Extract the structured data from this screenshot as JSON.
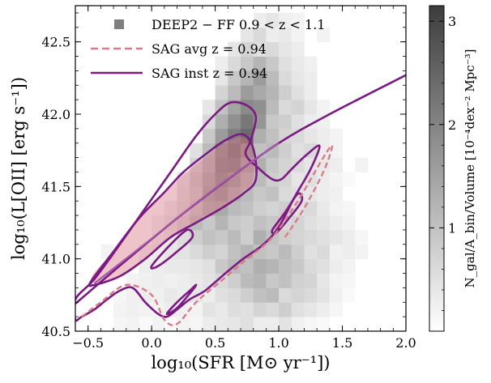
{
  "chart_data": {
    "type": "heatmap",
    "xlabel": "log₁₀(SFR [M⊙ yr⁻¹])",
    "ylabel": "log₁₀(L[OII] [erg s⁻¹])",
    "xlim": [
      -0.6,
      2.0
    ],
    "ylim": [
      40.5,
      42.75
    ],
    "xticks": [
      "−0.5",
      "0.0",
      "0.5",
      "1.0",
      "1.5",
      "2.0"
    ],
    "yticks": [
      "40.5",
      "41.0",
      "41.5",
      "42.0",
      "42.5"
    ],
    "grid": false,
    "legend_position": "top-left",
    "legend": [
      {
        "label": "DEEP2 − FF  0.9 < z < 1.1",
        "marker": "square",
        "color": "#7f7f7f"
      },
      {
        "label": "SAG avg z = 0.94",
        "marker": "dashed-line",
        "color": "#d97b88"
      },
      {
        "label": "SAG inst z = 0.94",
        "marker": "solid-line",
        "color": "#7b1a82"
      }
    ],
    "colorbar": {
      "label": "N_gal/A_bin/Volume [10⁻⁴dex⁻² Mpc⁻³]",
      "ticks": [
        "1",
        "2",
        "3"
      ],
      "range": [
        0,
        3.15
      ],
      "colormap": "Greys"
    },
    "heatmap_grid": {
      "x_start": -0.6,
      "x_step": 0.1,
      "y_start": 40.5,
      "y_step": 0.1,
      "values": [
        [
          0,
          0,
          0,
          0.15,
          0.2,
          0.1,
          0.2,
          0.1,
          0.2,
          0.15,
          0.3,
          0.35,
          0.4,
          0.5,
          0.3,
          0.3,
          0.45,
          0.25,
          0.15,
          0.1,
          0,
          0,
          0,
          0,
          0,
          0
        ],
        [
          0,
          0,
          0,
          0.2,
          0.25,
          0.2,
          0.2,
          0.3,
          0.25,
          0.2,
          0.45,
          0.35,
          0.55,
          0.5,
          0.7,
          0.6,
          0.8,
          0.5,
          0.4,
          0.3,
          0.15,
          0,
          0,
          0,
          0,
          0
        ],
        [
          0,
          0,
          0,
          0.15,
          0.25,
          0.3,
          0.25,
          0.35,
          0.3,
          0.4,
          0.3,
          0.5,
          0.6,
          0.8,
          1.0,
          1.1,
          0.6,
          0.7,
          0.6,
          0.45,
          0.25,
          0.1,
          0,
          0,
          0,
          0
        ],
        [
          0,
          0,
          0,
          0,
          0.2,
          0.25,
          0.3,
          0.25,
          0.3,
          0.35,
          0.45,
          0.6,
          0.8,
          1.1,
          1.2,
          0.9,
          1.0,
          0.75,
          0.7,
          0.4,
          0.2,
          0.15,
          0,
          0,
          0,
          0
        ],
        [
          0,
          0,
          0,
          0,
          0,
          0.3,
          0.3,
          0.35,
          0.35,
          0.4,
          0.5,
          0.9,
          1.1,
          1.0,
          1.3,
          1.2,
          1.0,
          0.9,
          0.6,
          0.5,
          0.3,
          0.2,
          0,
          0,
          0,
          0
        ],
        [
          0,
          0,
          0.2,
          0,
          0,
          0.2,
          0.3,
          0.4,
          0.45,
          0.6,
          0.8,
          0.7,
          1.0,
          1.2,
          1.0,
          0.9,
          1.1,
          0.8,
          0.5,
          0.6,
          0.25,
          0.3,
          0.2,
          0,
          0,
          0
        ],
        [
          0,
          0,
          0,
          0,
          0,
          0,
          0.25,
          0.35,
          0.55,
          0.8,
          1.0,
          0.9,
          1.1,
          0.8,
          1.3,
          1.0,
          0.8,
          0.7,
          0.6,
          0.5,
          0.4,
          0.3,
          0.15,
          0,
          0,
          0
        ],
        [
          0,
          0,
          0,
          0,
          0,
          0,
          0.2,
          0.45,
          0.7,
          1.1,
          0.9,
          1.2,
          0.9,
          0.8,
          1.0,
          0.9,
          0.6,
          0.7,
          0.5,
          0.4,
          0.3,
          0.2,
          0,
          0,
          0,
          0
        ],
        [
          0,
          0,
          0,
          0,
          0,
          0,
          0,
          0.3,
          0.6,
          0.9,
          1.3,
          1.4,
          1.1,
          1.0,
          0.8,
          0.7,
          0.8,
          0.5,
          0.6,
          0.35,
          0.2,
          0.15,
          0,
          0,
          0,
          0
        ],
        [
          0,
          0,
          0,
          0,
          0,
          0,
          0,
          0,
          0.5,
          0.8,
          1.5,
          1.7,
          1.3,
          1.1,
          0.9,
          1.0,
          0.6,
          0.5,
          0.4,
          0.3,
          0.25,
          0,
          0,
          0,
          0,
          0
        ],
        [
          0,
          0,
          0,
          0,
          0,
          0,
          0,
          0,
          0.4,
          0.9,
          1.4,
          1.9,
          1.6,
          1.2,
          1.1,
          0.8,
          0.7,
          0.4,
          0.5,
          0.3,
          0.2,
          0.1,
          0,
          0,
          0,
          0
        ],
        [
          0,
          0,
          0,
          0,
          0,
          0,
          0,
          0,
          0,
          0.7,
          1.2,
          2.0,
          2.1,
          1.5,
          1.3,
          0.9,
          0.7,
          0.6,
          0.4,
          0.35,
          0.3,
          0,
          0.2,
          0,
          0,
          0
        ],
        [
          0,
          0,
          0,
          0,
          0,
          0,
          0,
          0,
          0,
          0.5,
          1.1,
          1.9,
          2.3,
          1.8,
          1.0,
          1.1,
          0.8,
          0.5,
          0.6,
          0.3,
          0.2,
          0,
          0,
          0,
          0,
          0
        ],
        [
          0,
          0,
          0,
          0,
          0,
          0,
          0,
          0,
          0,
          0,
          0.9,
          1.6,
          2.1,
          2.4,
          1.3,
          1.0,
          0.7,
          0.6,
          0.4,
          0.3,
          0.2,
          0,
          0,
          0,
          0,
          0
        ],
        [
          0,
          0,
          0,
          0,
          0,
          0,
          0,
          0,
          0,
          0,
          0.6,
          1.3,
          1.8,
          2.2,
          1.7,
          0.9,
          0.8,
          0.5,
          0.3,
          0.25,
          0,
          0,
          0,
          0,
          0,
          0
        ],
        [
          0,
          0,
          0,
          0,
          0,
          0,
          0,
          0,
          0,
          0,
          0.4,
          1.0,
          1.5,
          1.9,
          1.8,
          1.1,
          0.6,
          0.7,
          0.4,
          0.2,
          0,
          0,
          0,
          0,
          0,
          0
        ],
        [
          0,
          0,
          0,
          0,
          0,
          0,
          0,
          0,
          0,
          0,
          0,
          0.7,
          1.1,
          1.6,
          1.4,
          1.2,
          0.8,
          0.5,
          0.3,
          0,
          0,
          0,
          0,
          0,
          0,
          0
        ],
        [
          0,
          0,
          0,
          0,
          0,
          0,
          0,
          0,
          0,
          0,
          0,
          0.4,
          0.9,
          1.2,
          1.6,
          1.1,
          0.6,
          0.4,
          0.3,
          0,
          0,
          0,
          0,
          0,
          0,
          0
        ],
        [
          0,
          0,
          0,
          0,
          0,
          0,
          0,
          0,
          0,
          0,
          0,
          0.3,
          0.6,
          0.9,
          1.2,
          0.9,
          0.5,
          0.35,
          0.25,
          0,
          0,
          0,
          0,
          0,
          0,
          0
        ],
        [
          0,
          0,
          0,
          0,
          0,
          0,
          0,
          0,
          0,
          0,
          0,
          0,
          0.4,
          0.7,
          0.5,
          0.6,
          0.4,
          0.3,
          0,
          0,
          0,
          0,
          0,
          0,
          0,
          0
        ],
        [
          0,
          0,
          0,
          0,
          0,
          0,
          0,
          0,
          0,
          0,
          0,
          0,
          0,
          0.4,
          0.6,
          0.3,
          0.35,
          0.2,
          0,
          0.2,
          0,
          0,
          0,
          0,
          0,
          0
        ],
        [
          0,
          0,
          0,
          0,
          0,
          0,
          0,
          0,
          0,
          0,
          0,
          0,
          0,
          0,
          0.3,
          0.4,
          0.25,
          0.2,
          0,
          0,
          0,
          0,
          0,
          0,
          0,
          0
        ]
      ]
    },
    "filled_contours": [
      {
        "name": "SAG avg z = 0.94 (inner filled region)",
        "color": "#d97b88",
        "opacity": 0.45,
        "points": [
          [
            -0.47,
            40.88
          ],
          [
            -0.3,
            41.05
          ],
          [
            -0.1,
            41.28
          ],
          [
            0.1,
            41.45
          ],
          [
            0.25,
            41.58
          ],
          [
            0.42,
            41.7
          ],
          [
            0.58,
            41.8
          ],
          [
            0.72,
            41.84
          ],
          [
            0.78,
            41.76
          ],
          [
            0.8,
            41.55
          ],
          [
            0.7,
            41.45
          ],
          [
            0.55,
            41.35
          ],
          [
            0.35,
            41.25
          ],
          [
            0.15,
            41.15
          ],
          [
            -0.05,
            41.0
          ],
          [
            -0.25,
            40.88
          ],
          [
            -0.42,
            40.83
          ]
        ]
      },
      {
        "name": "SAG avg z = 0.94 (mid island)",
        "color": "#d97b88",
        "opacity": 0.45,
        "points": [
          [
            0.98,
            41.2
          ],
          [
            1.1,
            41.38
          ],
          [
            1.15,
            41.45
          ],
          [
            1.08,
            41.38
          ],
          [
            0.98,
            41.25
          ]
        ]
      }
    ],
    "contours": [
      {
        "name": "SAG inst z = 0.94 outer",
        "style": "solid",
        "color": "#7b1a82",
        "points": [
          [
            -0.6,
            40.72
          ],
          [
            -0.45,
            40.86
          ],
          [
            -0.25,
            41.1
          ],
          [
            -0.05,
            41.35
          ],
          [
            0.15,
            41.6
          ],
          [
            0.35,
            41.85
          ],
          [
            0.5,
            42.0
          ],
          [
            0.62,
            42.08
          ],
          [
            0.75,
            42.06
          ],
          [
            0.82,
            41.98
          ],
          [
            0.78,
            41.82
          ],
          [
            0.74,
            41.72
          ],
          [
            0.85,
            41.62
          ],
          [
            0.95,
            41.55
          ],
          [
            1.02,
            41.55
          ],
          [
            1.1,
            41.62
          ],
          [
            1.22,
            41.72
          ],
          [
            1.32,
            41.78
          ],
          [
            1.25,
            41.62
          ],
          [
            1.12,
            41.42
          ],
          [
            1.0,
            41.22
          ],
          [
            0.88,
            41.1
          ],
          [
            0.72,
            41.0
          ],
          [
            0.58,
            40.9
          ],
          [
            0.42,
            40.78
          ],
          [
            0.3,
            40.72
          ],
          [
            0.2,
            40.65
          ],
          [
            0.12,
            40.6
          ],
          [
            0.05,
            40.62
          ],
          [
            -0.05,
            40.7
          ],
          [
            -0.15,
            40.8
          ],
          [
            -0.25,
            40.78
          ],
          [
            -0.35,
            40.72
          ],
          [
            -0.45,
            40.65
          ],
          [
            -0.55,
            40.6
          ],
          [
            -0.6,
            40.58
          ]
        ]
      },
      {
        "name": "SAG inst z = 0.94 inner",
        "style": "solid",
        "color": "#7b1a82",
        "points": [
          [
            -0.48,
            40.84
          ],
          [
            -0.3,
            41.05
          ],
          [
            -0.1,
            41.28
          ],
          [
            0.1,
            41.46
          ],
          [
            0.25,
            41.6
          ],
          [
            0.42,
            41.72
          ],
          [
            0.58,
            41.82
          ],
          [
            0.72,
            41.86
          ],
          [
            0.8,
            41.76
          ],
          [
            0.82,
            41.55
          ],
          [
            0.72,
            41.45
          ],
          [
            0.55,
            41.35
          ],
          [
            0.35,
            41.25
          ],
          [
            0.15,
            41.15
          ],
          [
            -0.05,
            41.0
          ],
          [
            -0.25,
            40.88
          ],
          [
            -0.45,
            40.82
          ]
        ]
      },
      {
        "name": "SAG inst z = 0.94 island mid",
        "style": "solid",
        "color": "#7b1a82",
        "points": [
          [
            0.95,
            41.2
          ],
          [
            1.05,
            41.32
          ],
          [
            1.15,
            41.45
          ],
          [
            1.18,
            41.4
          ],
          [
            1.08,
            41.28
          ],
          [
            0.98,
            41.18
          ]
        ]
      },
      {
        "name": "SAG inst z = 0.94 island low",
        "style": "solid",
        "color": "#7b1a82",
        "points": [
          [
            0.12,
            40.62
          ],
          [
            0.2,
            40.7
          ],
          [
            0.3,
            40.78
          ],
          [
            0.35,
            40.82
          ],
          [
            0.3,
            40.76
          ],
          [
            0.2,
            40.66
          ]
        ]
      },
      {
        "name": "SAG inst z = 0.94 island left",
        "style": "solid",
        "color": "#7b1a82",
        "points": [
          [
            0.0,
            40.95
          ],
          [
            0.15,
            41.1
          ],
          [
            0.28,
            41.2
          ],
          [
            0.32,
            41.15
          ],
          [
            0.2,
            41.05
          ],
          [
            0.05,
            40.95
          ]
        ]
      },
      {
        "name": "SAG inst z = 0.94 median",
        "style": "solid",
        "color": "#7b1a82",
        "points": [
          [
            -0.6,
            40.69
          ],
          [
            -0.2,
            40.99
          ],
          [
            0.2,
            41.28
          ],
          [
            0.6,
            41.55
          ],
          [
            1.0,
            41.8
          ],
          [
            1.4,
            42.0
          ],
          [
            2.0,
            42.27
          ]
        ]
      },
      {
        "name": "SAG avg z = 0.94 median",
        "style": "solid",
        "color": "#a05aa8",
        "points": [
          [
            -0.45,
            40.83
          ],
          [
            0.0,
            41.14
          ],
          [
            0.4,
            41.42
          ],
          [
            0.8,
            41.68
          ],
          [
            1.0,
            41.8
          ]
        ]
      },
      {
        "name": "SAG avg z = 0.94 dashed outer",
        "style": "dashed",
        "color": "#d97b88",
        "points": [
          [
            -0.55,
            40.6
          ],
          [
            -0.4,
            40.7
          ],
          [
            -0.2,
            40.82
          ],
          [
            0.0,
            40.75
          ],
          [
            0.1,
            40.58
          ],
          [
            0.2,
            40.55
          ],
          [
            0.35,
            40.7
          ],
          [
            0.55,
            40.85
          ],
          [
            0.75,
            41.0
          ],
          [
            0.95,
            41.15
          ],
          [
            1.15,
            41.4
          ],
          [
            1.35,
            41.7
          ],
          [
            1.42,
            41.78
          ],
          [
            1.35,
            41.6
          ],
          [
            1.2,
            41.35
          ],
          [
            1.05,
            41.15
          ]
        ]
      }
    ]
  }
}
